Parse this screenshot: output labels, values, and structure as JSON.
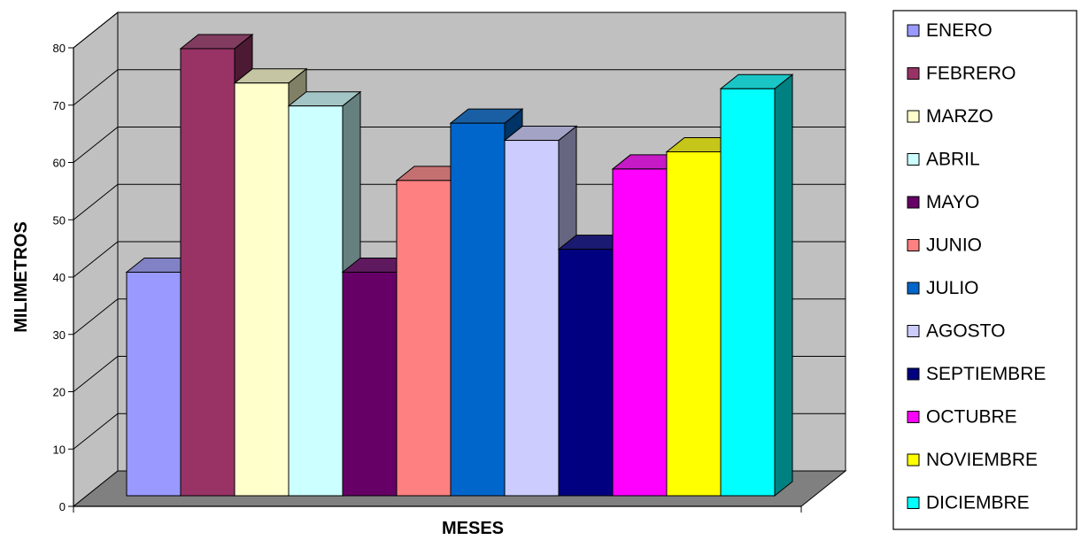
{
  "chart_data": {
    "type": "bar",
    "style": "3d-clustered-column",
    "title": "",
    "xlabel": "MESES",
    "ylabel": "MILIMETROS",
    "ylim": [
      0,
      80
    ],
    "ytick_step": 10,
    "grid": true,
    "legend_position": "right",
    "series": [
      {
        "name": "ENERO",
        "value": 39,
        "color": "#9999ff"
      },
      {
        "name": "FEBRERO",
        "value": 78,
        "color": "#993366"
      },
      {
        "name": "MARZO",
        "value": 72,
        "color": "#ffffcc"
      },
      {
        "name": "ABRIL",
        "value": 68,
        "color": "#ccffff"
      },
      {
        "name": "MAYO",
        "value": 39,
        "color": "#660066"
      },
      {
        "name": "JUNIO",
        "value": 55,
        "color": "#ff8080"
      },
      {
        "name": "JULIO",
        "value": 65,
        "color": "#0066cc"
      },
      {
        "name": "AGOSTO",
        "value": 62,
        "color": "#ccccff"
      },
      {
        "name": "SEPTIEMBRE",
        "value": 43,
        "color": "#000080"
      },
      {
        "name": "OCTUBRE",
        "value": 57,
        "color": "#ff00ff"
      },
      {
        "name": "NOVIEMBRE",
        "value": 60,
        "color": "#ffff00"
      },
      {
        "name": "DICIEMBRE",
        "value": 71,
        "color": "#00ffff"
      }
    ]
  }
}
